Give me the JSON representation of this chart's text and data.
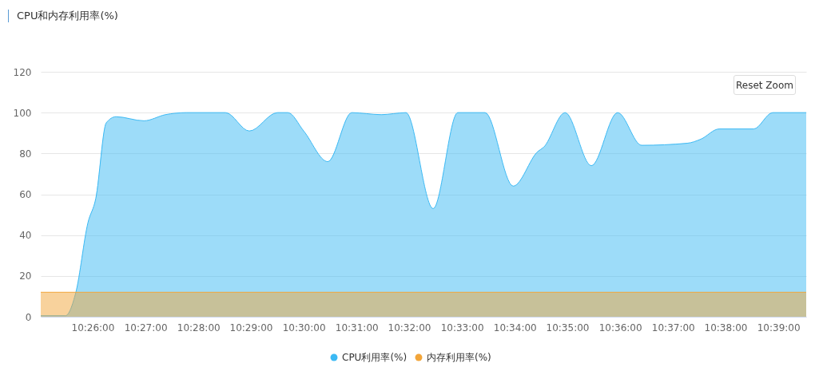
{
  "chart_data": {
    "type": "area",
    "title": "CPU和内存利用率(%)",
    "annotations": [
      "Reset Zoom"
    ],
    "series": [
      {
        "name": "CPU利用率(%)",
        "color": "#3bb9f4",
        "x": [
          10.4169,
          10.4247,
          10.428,
          10.4318,
          10.4343,
          10.4376,
          10.4407,
          10.4495,
          10.4563,
          10.4629,
          10.4753,
          10.4828,
          10.4917,
          10.495,
          10.5,
          10.5076,
          10.5152,
          10.5245,
          10.5323,
          10.5409,
          10.5487,
          10.5573,
          10.5662,
          10.574,
          10.5758,
          10.5826,
          10.5909,
          10.5992,
          10.6068,
          10.6212,
          10.6255,
          10.6313,
          10.6422,
          10.6482,
          10.6588
        ],
        "values": [
          0.5,
          0.5,
          12,
          46,
          58,
          95,
          98,
          96,
          99,
          100,
          100,
          91,
          100,
          100,
          91,
          76,
          100,
          99,
          100,
          53,
          100,
          100,
          64,
          81,
          83,
          100,
          74,
          100,
          84,
          85,
          87,
          92,
          92,
          100,
          100
        ]
      },
      {
        "name": "内存利用率(%)",
        "color": "#f2a53a",
        "x": [
          10.4169,
          10.6588
        ],
        "values": [
          12,
          12
        ]
      }
    ],
    "xlim": [
      10.4169,
      10.6588
    ],
    "xticks": [
      {
        "value": 10.4333,
        "label": "10:26:00"
      },
      {
        "value": 10.45,
        "label": "10:27:00"
      },
      {
        "value": 10.4667,
        "label": "10:28:00"
      },
      {
        "value": 10.4833,
        "label": "10:29:00"
      },
      {
        "value": 10.5,
        "label": "10:30:00"
      },
      {
        "value": 10.5167,
        "label": "10:31:00"
      },
      {
        "value": 10.5333,
        "label": "10:32:00"
      },
      {
        "value": 10.55,
        "label": "10:33:00"
      },
      {
        "value": 10.5667,
        "label": "10:34:00"
      },
      {
        "value": 10.5833,
        "label": "10:35:00"
      },
      {
        "value": 10.6,
        "label": "10:36:00"
      },
      {
        "value": 10.6167,
        "label": "10:37:00"
      },
      {
        "value": 10.6333,
        "label": "10:38:00"
      },
      {
        "value": 10.65,
        "label": "10:39:00"
      }
    ],
    "ylim": [
      0,
      120
    ],
    "yticks": [
      0,
      20,
      40,
      60,
      80,
      100,
      120
    ],
    "grid": "y",
    "legend": "bottom",
    "marker": "none",
    "line_style": "solid"
  }
}
